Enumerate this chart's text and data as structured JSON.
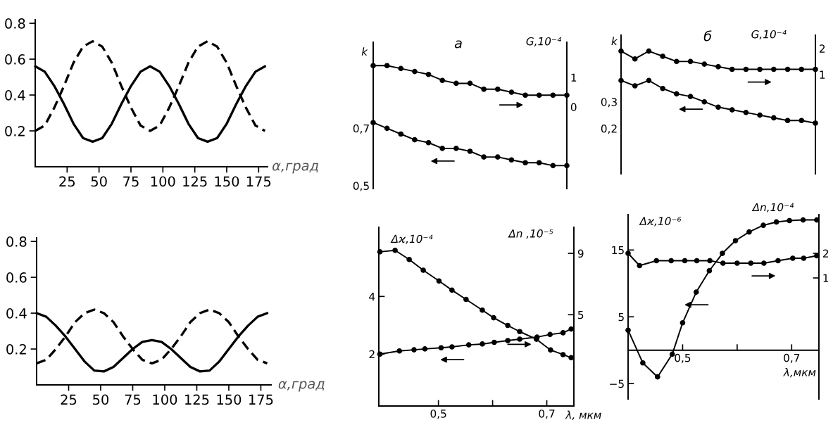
{
  "chart_data": [
    {
      "type": "line",
      "xlabel": "α,град",
      "x": [
        0,
        7.5,
        15,
        22.5,
        30,
        37.5,
        45,
        52.5,
        60,
        67.5,
        75,
        82.5,
        90,
        97.5,
        105,
        112.5,
        120,
        127.5,
        135,
        142.5,
        150,
        157.5,
        165,
        172.5,
        180
      ],
      "xlim": [
        0,
        182
      ],
      "ylim": [
        0,
        0.82
      ],
      "xticks": [
        25,
        50,
        75,
        100,
        125,
        150,
        175
      ],
      "yticks": [
        0.2,
        0.4,
        0.6,
        0.8
      ],
      "series": [
        {
          "color": "#000000",
          "line_style": "solid",
          "values": [
            0.56,
            0.53,
            0.45,
            0.35,
            0.24,
            0.16,
            0.14,
            0.16,
            0.24,
            0.35,
            0.45,
            0.53,
            0.56,
            0.53,
            0.45,
            0.35,
            0.24,
            0.16,
            0.14,
            0.16,
            0.24,
            0.35,
            0.45,
            0.53,
            0.56
          ]
        },
        {
          "color": "#000000",
          "line_style": "dashed",
          "values": [
            0.2,
            0.23,
            0.33,
            0.45,
            0.58,
            0.67,
            0.7,
            0.67,
            0.58,
            0.45,
            0.33,
            0.23,
            0.2,
            0.23,
            0.33,
            0.45,
            0.58,
            0.67,
            0.7,
            0.67,
            0.58,
            0.45,
            0.33,
            0.23,
            0.2
          ]
        }
      ]
    },
    {
      "type": "line",
      "title": "а",
      "ylabel": "k",
      "y2label": "G,10⁻⁴",
      "marker": "circle",
      "tick_labels": "y",
      "categories": [
        null,
        null,
        null,
        null,
        null,
        null,
        null,
        null,
        null,
        null,
        null,
        null,
        null,
        null,
        null
      ],
      "ylim": [
        0.49,
        1.0
      ],
      "yticks": [
        {
          "value": 0.5,
          "label": "0,5"
        },
        {
          "value": 0.7,
          "label": "0,7"
        }
      ],
      "y2lim": [
        -2.76,
        2.19
      ],
      "y2ticks": [
        0,
        1
      ],
      "series": [
        {
          "color": "#000000",
          "axis": "y2",
          "values": [
            1.4,
            1.4,
            1.3,
            1.2,
            1.1,
            0.9,
            0.8,
            0.8,
            0.6,
            0.6,
            0.5,
            0.4,
            0.4,
            0.4,
            0.4
          ]
        },
        {
          "color": "#000000",
          "axis": "y",
          "values": [
            0.72,
            0.7,
            0.68,
            0.66,
            0.65,
            0.63,
            0.63,
            0.62,
            0.6,
            0.6,
            0.59,
            0.58,
            0.58,
            0.57,
            0.57
          ]
        }
      ]
    },
    {
      "type": "line",
      "title": "б",
      "ylabel": "k",
      "y2label": "G,10⁻⁴",
      "marker": "circle",
      "tick_labels": "y",
      "categories": [
        null,
        null,
        null,
        null,
        null,
        null,
        null,
        null,
        null,
        null,
        null,
        null,
        null,
        null,
        null
      ],
      "ylim": [
        0.03,
        0.55
      ],
      "yticks": [
        {
          "value": 0.2,
          "label": "0,2"
        },
        {
          "value": 0.3,
          "label": "0,3"
        }
      ],
      "y2lim": [
        -2.81,
        2.51
      ],
      "y2ticks": [
        1,
        2
      ],
      "series": [
        {
          "color": "#000000",
          "axis": "y2",
          "values": [
            1.9,
            1.6,
            1.9,
            1.7,
            1.5,
            1.5,
            1.4,
            1.3,
            1.2,
            1.2,
            1.2,
            1.2,
            1.2,
            1.2,
            1.2
          ]
        },
        {
          "color": "#000000",
          "axis": "y",
          "values": [
            0.38,
            0.36,
            0.38,
            0.35,
            0.33,
            0.32,
            0.3,
            0.28,
            0.27,
            0.26,
            0.25,
            0.24,
            0.23,
            0.23,
            0.22
          ]
        }
      ]
    },
    {
      "type": "line",
      "xlabel": "α,град",
      "x": [
        0,
        7.5,
        15,
        22.5,
        30,
        37.5,
        45,
        52.5,
        60,
        67.5,
        75,
        82.5,
        90,
        97.5,
        105,
        112.5,
        120,
        127.5,
        135,
        142.5,
        150,
        157.5,
        165,
        172.5,
        180
      ],
      "xlim": [
        0,
        183
      ],
      "ylim": [
        0,
        0.82
      ],
      "xticks": [
        25,
        50,
        75,
        100,
        125,
        150,
        175
      ],
      "yticks": [
        0.2,
        0.4,
        0.6,
        0.8
      ],
      "series": [
        {
          "color": "#000000",
          "line_style": "solid",
          "values": [
            0.4,
            0.38,
            0.33,
            0.27,
            0.2,
            0.13,
            0.08,
            0.075,
            0.1,
            0.15,
            0.2,
            0.24,
            0.25,
            0.24,
            0.2,
            0.15,
            0.1,
            0.075,
            0.08,
            0.13,
            0.2,
            0.27,
            0.33,
            0.38,
            0.4
          ]
        },
        {
          "color": "#000000",
          "line_style": "dashed",
          "values": [
            0.12,
            0.14,
            0.2,
            0.27,
            0.35,
            0.4,
            0.42,
            0.4,
            0.35,
            0.27,
            0.2,
            0.14,
            0.12,
            0.14,
            0.2,
            0.27,
            0.35,
            0.4,
            0.42,
            0.4,
            0.35,
            0.27,
            0.2,
            0.14,
            0.12
          ]
        }
      ]
    },
    {
      "type": "line",
      "xlabel": "λ, мкм",
      "ylabel": "Δϰ,10⁻⁴",
      "y2label": "Δn ,10⁻⁵",
      "marker": "circle",
      "xlim": [
        0.39,
        0.75
      ],
      "xticks": [
        {
          "value": 0.5,
          "label": "0,5"
        },
        {
          "value": 0.6,
          "label": null
        },
        {
          "value": 0.7,
          "label": "0,7"
        }
      ],
      "ylim": [
        0.2,
        6.4
      ],
      "yticks": [
        2,
        4
      ],
      "y2lim": [
        -0.95,
        10.7
      ],
      "y2ticks": [
        5,
        9
      ],
      "series": [
        {
          "color": "#000000",
          "axis": "y2",
          "x": [
            0.392,
            0.42,
            0.446,
            0.472,
            0.501,
            0.525,
            0.551,
            0.581,
            0.602,
            0.628,
            0.65,
            0.681,
            0.707,
            0.73,
            0.745
          ],
          "values": [
            9.1,
            9.2,
            8.6,
            7.9,
            7.2,
            6.6,
            6.0,
            5.3,
            4.8,
            4.3,
            3.9,
            3.4,
            2.7,
            2.4,
            2.2
          ]
        },
        {
          "color": "#000000",
          "axis": "y",
          "x": [
            0.392,
            0.428,
            0.455,
            0.475,
            0.505,
            0.525,
            0.556,
            0.581,
            0.603,
            0.628,
            0.65,
            0.682,
            0.706,
            0.73,
            0.745
          ],
          "values": [
            2.0,
            2.11,
            2.15,
            2.18,
            2.22,
            2.25,
            2.32,
            2.35,
            2.41,
            2.47,
            2.52,
            2.59,
            2.68,
            2.74,
            2.87
          ]
        }
      ]
    },
    {
      "type": "line",
      "xlabel": "λ,мкм",
      "ylabel": "Δϰ,10⁻⁶",
      "y2label": "Δn,10⁻⁴",
      "marker": "circle",
      "xlim": [
        0.4,
        0.75
      ],
      "xticks": [
        {
          "value": 0.5,
          "label": "0,5"
        },
        {
          "value": 0.6,
          "label": null
        },
        {
          "value": 0.7,
          "label": "0,7"
        }
      ],
      "ylim": [
        -7.3,
        20.3
      ],
      "yticks": [
        {
          "value": -5,
          "label": "−5"
        },
        5,
        15
      ],
      "y2lim": [
        -3.91,
        3.57
      ],
      "y2ticks": [
        1,
        2
      ],
      "series": [
        {
          "color": "#000000",
          "axis": "y",
          "x": [
            0.4,
            0.427,
            0.454,
            0.481,
            0.5,
            0.525,
            0.549,
            0.573,
            0.597,
            0.622,
            0.648,
            0.672,
            0.696,
            0.721,
            0.746
          ],
          "values": [
            3.0,
            -1.9,
            -4.0,
            -0.6,
            4.1,
            8.7,
            11.9,
            14.5,
            16.4,
            17.7,
            18.7,
            19.2,
            19.4,
            19.5,
            19.5
          ]
        },
        {
          "color": "#000000",
          "axis": "y2",
          "x": [
            0.4,
            0.421,
            0.452,
            0.479,
            0.504,
            0.526,
            0.55,
            0.574,
            0.6,
            0.625,
            0.649,
            0.675,
            0.702,
            0.722,
            0.746
          ],
          "values": [
            2.0,
            1.5,
            1.7,
            1.7,
            1.7,
            1.7,
            1.7,
            1.6,
            1.6,
            1.6,
            1.6,
            1.7,
            1.8,
            1.8,
            1.9
          ]
        }
      ]
    }
  ]
}
